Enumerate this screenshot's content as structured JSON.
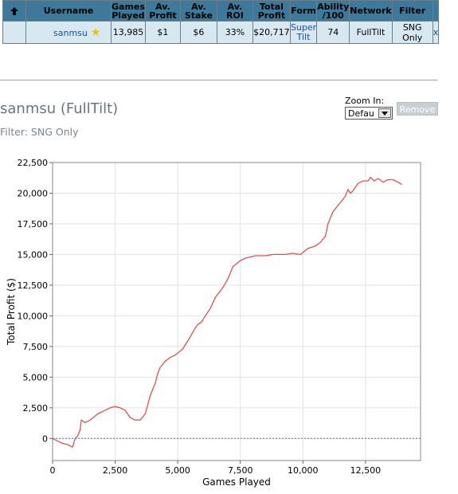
{
  "table": {
    "headers": [
      "Username",
      "Games Played",
      "Av. Profit",
      "Av. Stake",
      "Av. ROI",
      "Total Profit",
      "Form",
      "Ability /100",
      "Network",
      "Filter"
    ],
    "headers_lines": {
      "games": [
        "Games",
        "Played"
      ],
      "avprofit": [
        "Av.",
        "Profit"
      ],
      "avstake": [
        "Av.",
        "Stake"
      ],
      "total": [
        "Total",
        "Profit"
      ],
      "ability": [
        "Ability",
        "/100"
      ]
    },
    "row": {
      "username": "sanmsu",
      "games_played": "13,985",
      "av_profit": "$1",
      "av_stake": "$6",
      "av_roi": "33%",
      "total_profit": "$20,717",
      "form_lines": [
        "Super",
        "Tilt"
      ],
      "ability": "74",
      "network": "FullTilt",
      "filter": "SNG Only",
      "extra": "x"
    }
  },
  "title": "sanmsu (FullTilt)",
  "filter_text": "Filter: SNG Only",
  "zoom": {
    "label": "Zoom In:",
    "value": "Defau"
  },
  "remove_label": "Remove",
  "chart_data": {
    "type": "line",
    "xlabel": "Games Played",
    "ylabel": "Total Profit ($)",
    "xlim": [
      0,
      14700
    ],
    "ylim": [
      -1800,
      22500
    ],
    "xticks": [
      0,
      2500,
      5000,
      7500,
      10000,
      12500
    ],
    "xtick_labels": [
      "0",
      "2,500",
      "5,000",
      "7,500",
      "10,000",
      "12,500"
    ],
    "yticks": [
      0,
      2500,
      5000,
      7500,
      10000,
      12500,
      15000,
      17500,
      20000,
      22500
    ],
    "ytick_labels": [
      "0",
      "2,500",
      "5,000",
      "7,500",
      "10,000",
      "12,500",
      "15,000",
      "17,500",
      "20,000",
      "22,500"
    ],
    "grid": true,
    "series": [
      {
        "color": "#e05050",
        "x": [
          0,
          200,
          400,
          600,
          800,
          900,
          1000,
          1100,
          1150,
          1300,
          1500,
          1800,
          2000,
          2300,
          2500,
          2700,
          2900,
          3100,
          3300,
          3500,
          3700,
          3900,
          4000,
          4100,
          4200,
          4300,
          4500,
          4700,
          4900,
          5200,
          5500,
          5700,
          5800,
          5950,
          6100,
          6300,
          6500,
          6800,
          7000,
          7200,
          7500,
          7700,
          7900,
          8100,
          8300,
          8500,
          8800,
          9000,
          9300,
          9600,
          9900,
          10200,
          10500,
          10700,
          10900,
          11000,
          11200,
          11400,
          11600,
          11700,
          11800,
          11900,
          12000,
          12200,
          12400,
          12600,
          12700,
          12850,
          13000,
          13200,
          13400,
          13600,
          13800,
          13950
        ],
        "y": [
          0,
          -200,
          -400,
          -500,
          -700,
          0,
          200,
          700,
          1500,
          1300,
          1500,
          2000,
          2200,
          2500,
          2600,
          2500,
          2300,
          1700,
          1500,
          1500,
          2000,
          3500,
          4000,
          4500,
          5300,
          5800,
          6300,
          6600,
          6800,
          7300,
          8300,
          9000,
          9300,
          9500,
          10000,
          10600,
          11500,
          12300,
          13000,
          14000,
          14500,
          14700,
          14800,
          14900,
          14900,
          14900,
          15000,
          15000,
          15000,
          15100,
          15000,
          15500,
          15700,
          16000,
          16500,
          17500,
          18500,
          19000,
          19500,
          19800,
          20300,
          20000,
          20200,
          20800,
          21000,
          21000,
          21300,
          21000,
          21200,
          20900,
          21100,
          21100,
          20900,
          20700
        ]
      }
    ]
  }
}
